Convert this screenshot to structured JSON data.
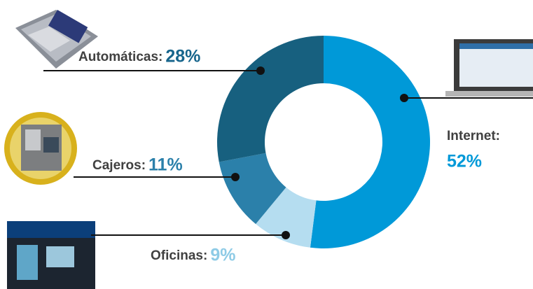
{
  "chart_data": {
    "type": "donut",
    "categories": [
      "Internet:",
      "Oficinas:",
      "Cajeros:",
      "Automáticas:"
    ],
    "values": [
      52,
      9,
      11,
      28
    ],
    "value_labels": [
      "52%",
      "9%",
      "11%",
      "28%"
    ],
    "colors": [
      "#0099d8",
      "#b5ddf0",
      "#2b80aa",
      "#17607f"
    ],
    "label_colors": [
      "#0099d8",
      "#8ecbe6",
      "#2b80aa",
      "#17658c"
    ]
  }
}
